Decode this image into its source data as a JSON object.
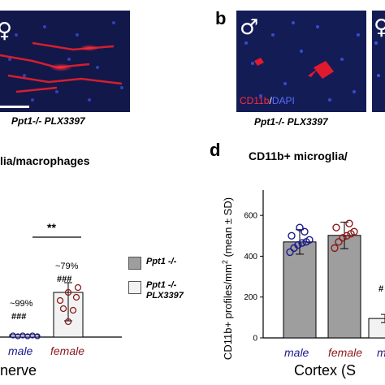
{
  "panel_a": {
    "sex_symbol": "♀",
    "caption": "Ppt1-/- PLX3397"
  },
  "panel_b": {
    "letter": "b",
    "sex_symbol_1": "♂",
    "sex_symbol_2": "♀",
    "stain_label_red": "CD11b",
    "stain_label_sep": "/",
    "stain_label_blue": "DAPI",
    "caption": "Ppt1-/- PLX3397"
  },
  "panel_c": {
    "title_fragment": "lia/macrophages",
    "significance": "**",
    "male_percent": "~99%",
    "male_hash": "###",
    "female_percent": "~79%",
    "female_hash": "###",
    "x_male": "male",
    "x_female": "female",
    "x_group": "nerve",
    "colors": {
      "male": "#1a1a8c",
      "female": "#8b1a1a"
    }
  },
  "legend": {
    "items": [
      {
        "label": "Ppt1 -/-",
        "color": "#9e9e9e"
      },
      {
        "label_line1": "Ppt1 -/-",
        "label_line2": "PLX3397",
        "color": "#f2f2f2"
      }
    ]
  },
  "panel_d": {
    "letter": "d",
    "title": "CD11b+ microglia/",
    "ylabel": "CD11b+ profiles/mm",
    "ylabel_sup": "2",
    "ylabel_suffix": " (mean ± SD)",
    "x_male": "male",
    "x_female": "female",
    "x_partial": "m",
    "x_group": "Cortex (S",
    "partial_hash": "#"
  },
  "chart_data": {
    "type": "bar",
    "title": "CD11b+ microglia/",
    "ylabel": "CD11b+ profiles/mm2 (mean ± SD)",
    "xlabel": "Cortex (S",
    "ylim": [
      0,
      700
    ],
    "yticks": [
      0,
      200,
      400,
      600
    ],
    "categories": [
      "male",
      "female",
      "m"
    ],
    "series": [
      {
        "values": [
          470,
          502,
          95
        ]
      }
    ],
    "error_sd": [
      60,
      65,
      20
    ],
    "points": {
      "male": [
        420,
        440,
        455,
        465,
        470,
        480,
        500,
        520,
        540
      ],
      "female": [
        440,
        470,
        490,
        500,
        510,
        520,
        540,
        560
      ]
    }
  }
}
